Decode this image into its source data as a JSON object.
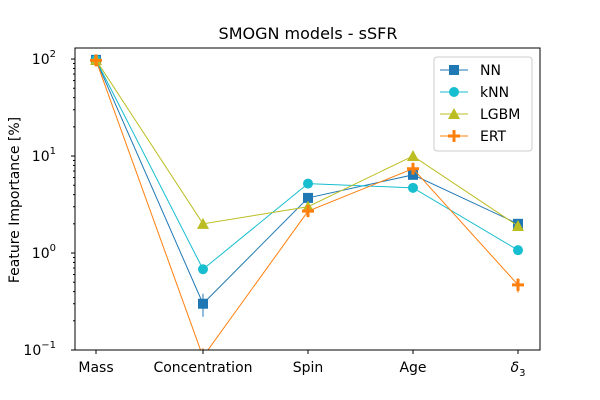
{
  "chart_data": {
    "type": "line",
    "title": "SMOGN models - sSFR",
    "xlabel": "",
    "ylabel": "Feature Importance [%]",
    "yscale": "log",
    "ylim": [
      0.1,
      130
    ],
    "categories": [
      "Mass",
      "Concentration",
      "Spin",
      "Age",
      "δ3"
    ],
    "yticks": [
      {
        "value": 0.1,
        "base": "10",
        "exp": "−1"
      },
      {
        "value": 1,
        "base": "10",
        "exp": "0"
      },
      {
        "value": 10,
        "base": "10",
        "exp": "1"
      },
      {
        "value": 100,
        "base": "10",
        "exp": "2"
      }
    ],
    "legend_position": "top-right",
    "series": [
      {
        "name": "NN",
        "color": "#1f77b4",
        "marker": "square",
        "values": [
          98,
          0.3,
          3.7,
          6.4,
          2.0
        ],
        "err": [
          2,
          0.08,
          0.3,
          0.6,
          0.15
        ]
      },
      {
        "name": "kNN",
        "color": "#17becf",
        "marker": "circle",
        "values": [
          98,
          0.68,
          5.2,
          4.7,
          1.07
        ],
        "err": [
          0,
          0,
          0,
          0,
          0
        ]
      },
      {
        "name": "LGBM",
        "color": "#bcbd22",
        "marker": "triangle",
        "values": [
          98,
          2.0,
          3.0,
          10.0,
          1.9
        ],
        "err": [
          0,
          0,
          0,
          0,
          0
        ]
      },
      {
        "name": "ERT",
        "color": "#ff7f0e",
        "marker": "plus",
        "values": [
          97,
          0.085,
          2.7,
          7.4,
          0.47
        ],
        "err": [
          2,
          0.02,
          0.3,
          0.8,
          0.08
        ]
      }
    ]
  }
}
